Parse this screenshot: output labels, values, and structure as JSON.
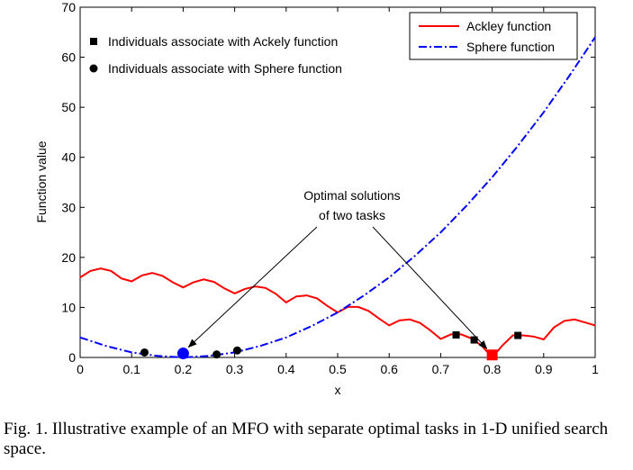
{
  "chart_data": {
    "type": "line",
    "xlabel": "x",
    "ylabel": "Function value",
    "xlim": [
      0,
      1
    ],
    "ylim": [
      0,
      70
    ],
    "x_ticks": [
      "0",
      "0.1",
      "0.2",
      "0.3",
      "0.4",
      "0.5",
      "0.6",
      "0.7",
      "0.8",
      "0.9",
      "1"
    ],
    "y_ticks": [
      "0",
      "10",
      "20",
      "30",
      "40",
      "50",
      "60",
      "70"
    ],
    "legend_placement": "top-right",
    "series": [
      {
        "name": "Ackley function",
        "color": "#ff0000",
        "style": "solid",
        "x": [
          0,
          0.02,
          0.04,
          0.06,
          0.08,
          0.1,
          0.12,
          0.14,
          0.16,
          0.18,
          0.2,
          0.22,
          0.24,
          0.26,
          0.28,
          0.3,
          0.32,
          0.34,
          0.36,
          0.38,
          0.4,
          0.42,
          0.44,
          0.46,
          0.48,
          0.5,
          0.52,
          0.54,
          0.56,
          0.58,
          0.6,
          0.62,
          0.64,
          0.66,
          0.68,
          0.7,
          0.72,
          0.74,
          0.76,
          0.78,
          0.8,
          0.82,
          0.84,
          0.86,
          0.88,
          0.9,
          0.92,
          0.94,
          0.96,
          0.98,
          1.0
        ],
        "y": [
          16.0,
          17.3,
          17.8,
          17.3,
          15.8,
          15.2,
          16.4,
          16.9,
          16.3,
          15.0,
          14.0,
          15.0,
          15.6,
          15.1,
          13.8,
          12.8,
          13.7,
          14.2,
          13.9,
          12.7,
          11.0,
          12.2,
          12.4,
          11.8,
          10.3,
          9.0,
          10.1,
          10.1,
          9.3,
          7.8,
          6.4,
          7.4,
          7.6,
          6.9,
          5.4,
          3.7,
          4.6,
          4.6,
          3.8,
          2.3,
          0.0,
          2.4,
          4.4,
          4.4,
          4.2,
          3.6,
          6.0,
          7.3,
          7.6,
          7.0,
          6.4
        ]
      },
      {
        "name": "Sphere function",
        "color": "#0000ff",
        "style": "dash-dot",
        "x": [
          0,
          0.05,
          0.1,
          0.15,
          0.2,
          0.25,
          0.3,
          0.35,
          0.4,
          0.45,
          0.5,
          0.55,
          0.6,
          0.65,
          0.7,
          0.75,
          0.8,
          0.85,
          0.9,
          0.95,
          1.0
        ],
        "y": [
          4.0,
          2.3,
          1.0,
          0.3,
          0.0,
          0.3,
          1.0,
          2.3,
          4.0,
          6.3,
          9.0,
          12.3,
          16.0,
          20.3,
          25.0,
          30.3,
          36.0,
          42.3,
          49.0,
          56.3,
          64.0
        ]
      }
    ],
    "markers": [
      {
        "name": "Individuals associate with Ackely function",
        "shape": "square",
        "color": "#000000",
        "points": [
          [
            0.73,
            4.5
          ],
          [
            0.765,
            3.5
          ],
          [
            0.85,
            4.4
          ]
        ]
      },
      {
        "name": "Individuals associate with Sphere function",
        "shape": "circle",
        "color": "#000000",
        "points": [
          [
            0.125,
            1.0
          ],
          [
            0.265,
            0.6
          ],
          [
            0.305,
            1.4
          ]
        ]
      }
    ],
    "optima": [
      {
        "shape": "circle",
        "color": "#0000ff",
        "x": 0.2,
        "y": 0.8
      },
      {
        "shape": "square",
        "color": "#ff0000",
        "x": 0.8,
        "y": 0.5
      }
    ],
    "annotation": {
      "lines": [
        "Optimal solutions",
        "of two tasks"
      ],
      "arrow_targets": [
        [
          0.2,
          0.8
        ],
        [
          0.8,
          0.5
        ]
      ]
    }
  },
  "caption": "Fig. 1.   Illustrative example of an MFO with separate optimal tasks in 1-D unified search space."
}
